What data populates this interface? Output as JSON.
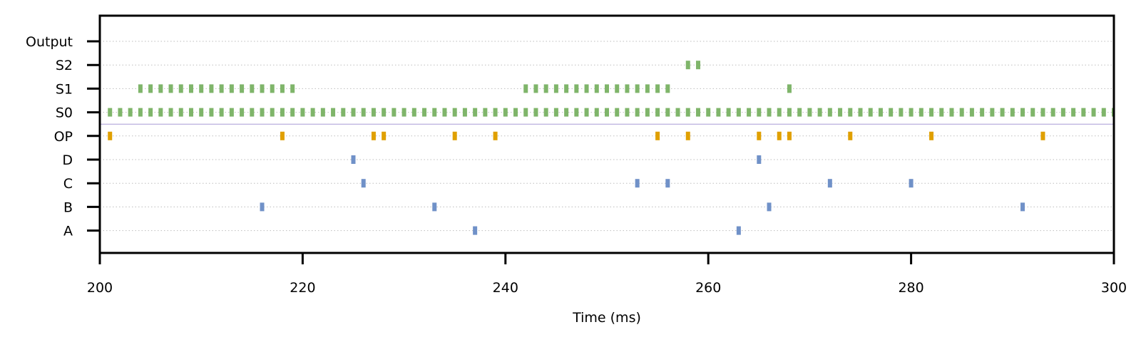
{
  "chart_data": {
    "type": "scatter",
    "title": "",
    "xlabel": "Time (ms)",
    "ylabel": "",
    "xlim": [
      200,
      300
    ],
    "xticks": [
      200,
      220,
      240,
      260,
      280,
      300
    ],
    "grid": "horizontal-dotted",
    "legend": "none",
    "rows": [
      "A",
      "B",
      "C",
      "D",
      "OP",
      "S0",
      "S1",
      "S2",
      "Output"
    ],
    "series": [
      {
        "row": "A",
        "color": "#7091c8",
        "x": [
          237,
          263
        ]
      },
      {
        "row": "B",
        "color": "#7091c8",
        "x": [
          216,
          233,
          266,
          291
        ]
      },
      {
        "row": "C",
        "color": "#7091c8",
        "x": [
          226,
          253,
          256,
          272,
          280
        ]
      },
      {
        "row": "D",
        "color": "#7091c8",
        "x": [
          225,
          265
        ]
      },
      {
        "row": "OP",
        "color": "#e0a000",
        "x": [
          201,
          218,
          227,
          228,
          235,
          239,
          255,
          258,
          265,
          267,
          268,
          274,
          282,
          293
        ]
      },
      {
        "row": "S0",
        "color": "#7fb56a",
        "x": [
          201,
          202,
          203,
          204,
          205,
          206,
          207,
          208,
          209,
          210,
          211,
          212,
          213,
          214,
          215,
          216,
          217,
          218,
          219,
          220,
          221,
          222,
          223,
          224,
          225,
          226,
          227,
          228,
          229,
          230,
          231,
          232,
          233,
          234,
          235,
          236,
          237,
          238,
          239,
          240,
          241,
          242,
          243,
          244,
          245,
          246,
          247,
          248,
          249,
          250,
          251,
          252,
          253,
          254,
          255,
          256,
          257,
          258,
          259,
          260,
          261,
          262,
          263,
          264,
          265,
          266,
          267,
          268,
          269,
          270,
          271,
          272,
          273,
          274,
          275,
          276,
          277,
          278,
          279,
          280,
          281,
          282,
          283,
          284,
          285,
          286,
          287,
          288,
          289,
          290,
          291,
          292,
          293,
          294,
          295,
          296,
          297,
          298,
          299,
          300
        ]
      },
      {
        "row": "S1",
        "color": "#7fb56a",
        "x": [
          204,
          205,
          206,
          207,
          208,
          209,
          210,
          211,
          212,
          213,
          214,
          215,
          216,
          217,
          218,
          219,
          242,
          243,
          244,
          245,
          246,
          247,
          248,
          249,
          250,
          251,
          252,
          253,
          254,
          255,
          256,
          268
        ]
      },
      {
        "row": "S2",
        "color": "#7fb56a",
        "x": [
          258,
          259
        ]
      },
      {
        "row": "Output",
        "color": "#7fb56a",
        "x": []
      }
    ],
    "separator_line": {
      "color": "#a99ad6",
      "between_rows": [
        "OP",
        "S0"
      ]
    }
  }
}
